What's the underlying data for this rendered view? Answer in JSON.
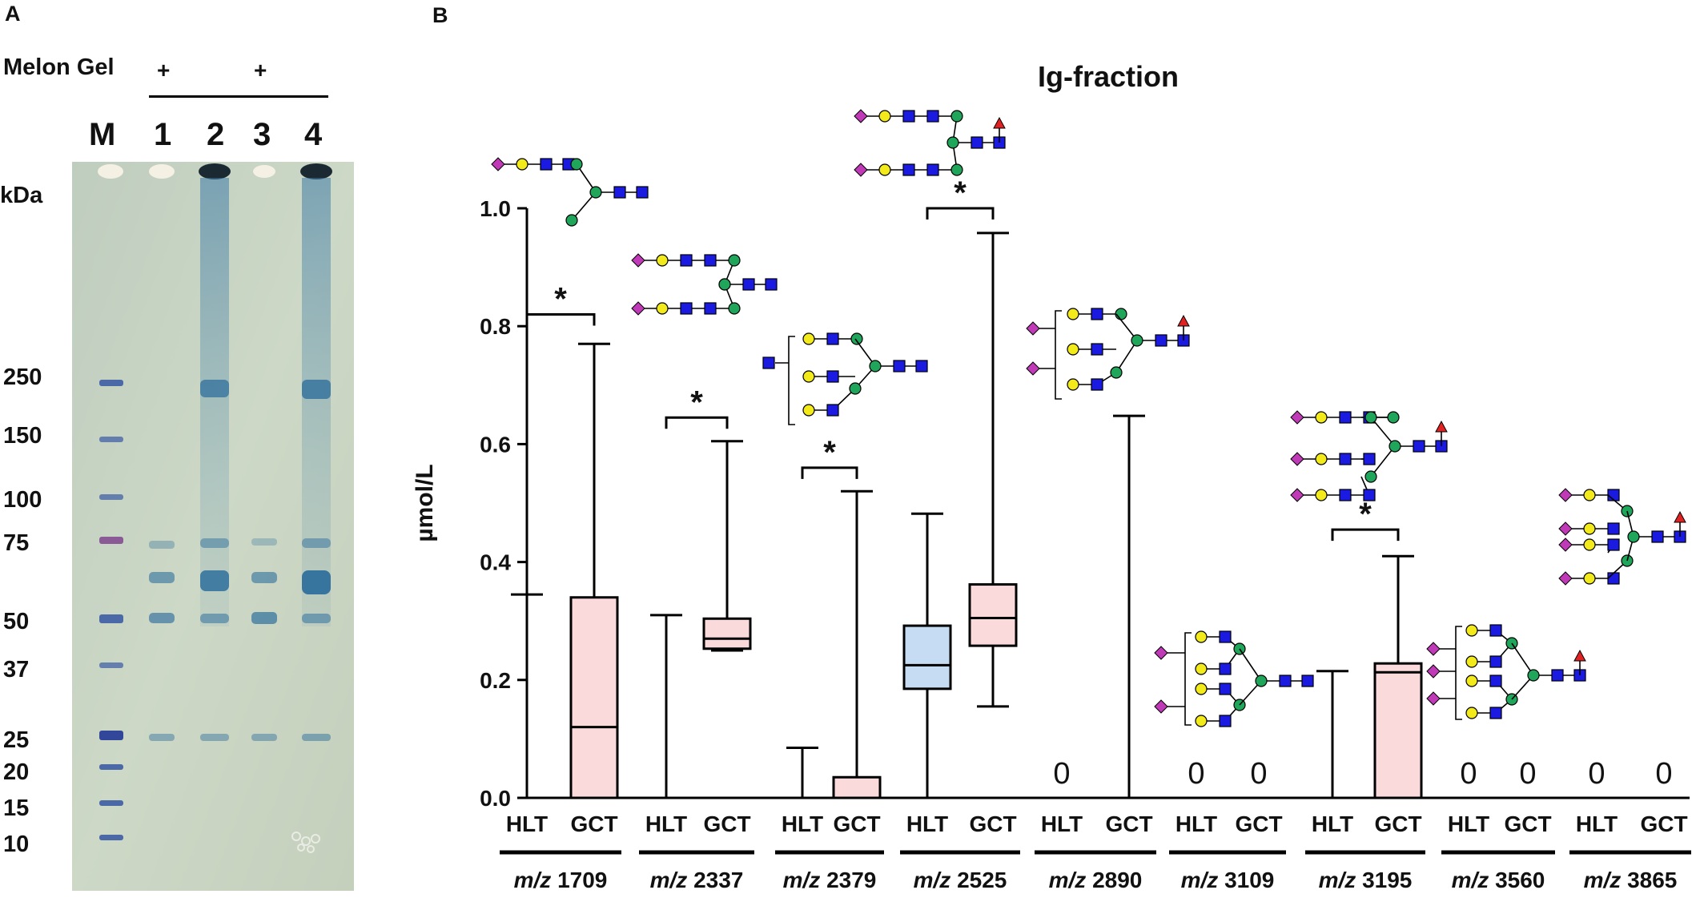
{
  "panel_a": {
    "letter": "A",
    "melon_gel_label": "Melon Gel",
    "plus_marks": [
      "+",
      "+"
    ],
    "lane_labels": [
      "M",
      "1",
      "2",
      "3",
      "4"
    ],
    "kda_label": "kDa",
    "marker_labels": [
      "250",
      "150",
      "100",
      "75",
      "50",
      "37",
      "25",
      "20",
      "15",
      "10"
    ],
    "gel_background": "#c9d4c0",
    "band_color": "#2f6f9c",
    "marker_color": "#4a69a6"
  },
  "panel_b": {
    "letter": "B",
    "ylabel": "µmol/L",
    "title": "Ig-fraction",
    "hlt_color": "#c6dcf2",
    "gct_color": "#fadadb",
    "glycan_colors": {
      "sialic": "#c03ab8",
      "galactose": "#f2ea1a",
      "glcnac": "#1a1ae0",
      "mannose": "#1fa65b",
      "fucose": "#e02222"
    }
  },
  "chart_data": {
    "type": "box",
    "title": "Ig-fraction",
    "ylabel": "µmol/L",
    "ylim": [
      0,
      1.0
    ],
    "yticks": [
      "0.0",
      "0.2",
      "0.4",
      "0.6",
      "0.8",
      "1.0"
    ],
    "group_prefix": "m/z",
    "groups": [
      "1709",
      "2337",
      "2379",
      "2525",
      "2890",
      "3109",
      "3195",
      "3560",
      "3865"
    ],
    "series": [
      "HLT",
      "GCT"
    ],
    "boxes": [
      {
        "group": "1709",
        "series": "HLT",
        "min": 0,
        "q1": 0,
        "median": 0,
        "q3": 0,
        "max": 0.345,
        "zero_label": ""
      },
      {
        "group": "1709",
        "series": "GCT",
        "min": 0,
        "q1": 0,
        "median": 0.12,
        "q3": 0.34,
        "max": 0.77,
        "zero_label": ""
      },
      {
        "group": "2337",
        "series": "HLT",
        "min": 0,
        "q1": 0,
        "median": 0,
        "q3": 0,
        "max": 0.31,
        "zero_label": ""
      },
      {
        "group": "2337",
        "series": "GCT",
        "min": 0.25,
        "q1": 0.253,
        "median": 0.27,
        "q3": 0.304,
        "max": 0.605,
        "zero_label": ""
      },
      {
        "group": "2379",
        "series": "HLT",
        "min": 0,
        "q1": 0,
        "median": 0,
        "q3": 0,
        "max": 0.085,
        "zero_label": ""
      },
      {
        "group": "2379",
        "series": "GCT",
        "min": 0,
        "q1": 0,
        "median": 0,
        "q3": 0.035,
        "max": 0.52,
        "zero_label": ""
      },
      {
        "group": "2525",
        "series": "HLT",
        "min": 0,
        "q1": 0.185,
        "median": 0.225,
        "q3": 0.292,
        "max": 0.482,
        "zero_label": ""
      },
      {
        "group": "2525",
        "series": "GCT",
        "min": 0.155,
        "q1": 0.258,
        "median": 0.305,
        "q3": 0.362,
        "max": 0.958,
        "zero_label": ""
      },
      {
        "group": "2890",
        "series": "HLT",
        "min": 0,
        "q1": 0,
        "median": 0,
        "q3": 0,
        "max": 0,
        "zero_label": "0"
      },
      {
        "group": "2890",
        "series": "GCT",
        "min": 0,
        "q1": 0,
        "median": 0,
        "q3": 0,
        "max": 0.648,
        "zero_label": ""
      },
      {
        "group": "3109",
        "series": "HLT",
        "min": 0,
        "q1": 0,
        "median": 0,
        "q3": 0,
        "max": 0,
        "zero_label": "0"
      },
      {
        "group": "3109",
        "series": "GCT",
        "min": 0,
        "q1": 0,
        "median": 0,
        "q3": 0,
        "max": 0,
        "zero_label": "0"
      },
      {
        "group": "3195",
        "series": "HLT",
        "min": 0,
        "q1": 0,
        "median": 0,
        "q3": 0,
        "max": 0.215,
        "zero_label": ""
      },
      {
        "group": "3195",
        "series": "GCT",
        "min": 0,
        "q1": 0,
        "median": 0.213,
        "q3": 0.228,
        "max": 0.41,
        "zero_label": ""
      },
      {
        "group": "3560",
        "series": "HLT",
        "min": 0,
        "q1": 0,
        "median": 0,
        "q3": 0,
        "max": 0,
        "zero_label": "0"
      },
      {
        "group": "3560",
        "series": "GCT",
        "min": 0,
        "q1": 0,
        "median": 0,
        "q3": 0,
        "max": 0,
        "zero_label": "0"
      },
      {
        "group": "3865",
        "series": "HLT",
        "min": 0,
        "q1": 0,
        "median": 0,
        "q3": 0,
        "max": 0,
        "zero_label": "0"
      },
      {
        "group": "3865",
        "series": "GCT",
        "min": 0,
        "q1": 0,
        "median": 0,
        "q3": 0,
        "max": 0,
        "zero_label": "0"
      }
    ],
    "significance": [
      {
        "group": "1709",
        "label": "*",
        "y": 0.82
      },
      {
        "group": "2337",
        "label": "*",
        "y": 0.645
      },
      {
        "group": "2379",
        "label": "*",
        "y": 0.56
      },
      {
        "group": "2525",
        "label": "*",
        "y": 1.0
      },
      {
        "group": "3195",
        "label": "*",
        "y": 0.455
      }
    ]
  }
}
